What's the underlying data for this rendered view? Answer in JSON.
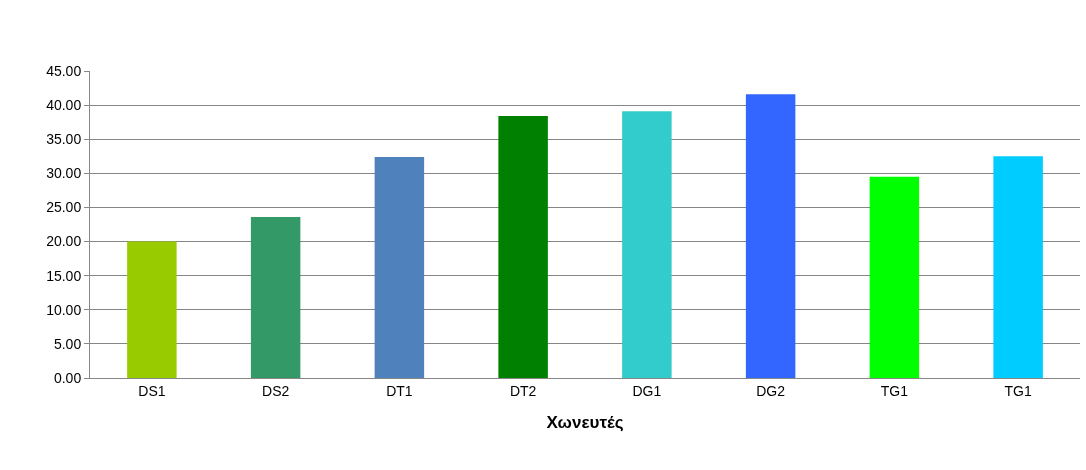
{
  "chart_data": {
    "type": "bar",
    "xlabel": "Χωνευτές",
    "categories": [
      "DS1",
      "DS2",
      "DT1",
      "DT2",
      "DG1",
      "DG2",
      "TG1",
      "TG1"
    ],
    "values": [
      20.0,
      23.6,
      32.4,
      38.4,
      39.1,
      41.6,
      29.5,
      32.5
    ],
    "colors": [
      "#99cc00",
      "#339966",
      "#4f81bd",
      "#008000",
      "#33cccc",
      "#3366ff",
      "#00ff00",
      "#00ccff"
    ],
    "ylim": [
      0,
      45
    ],
    "yticks": [
      {
        "value": 0,
        "label": "0.00"
      },
      {
        "value": 5,
        "label": "5.00"
      },
      {
        "value": 10,
        "label": "10.00"
      },
      {
        "value": 15,
        "label": "15.00"
      },
      {
        "value": 20,
        "label": "20.00"
      },
      {
        "value": 25,
        "label": "25.00"
      },
      {
        "value": 30,
        "label": "30.00"
      },
      {
        "value": 35,
        "label": "35.00"
      },
      {
        "value": 40,
        "label": "40.00"
      },
      {
        "value": 45,
        "label": "45.00"
      }
    ],
    "grid": "y"
  }
}
